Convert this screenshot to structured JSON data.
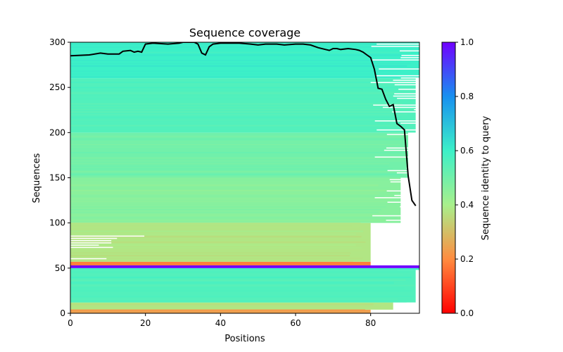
{
  "chart_data": {
    "type": "heatmap",
    "title": "Sequence coverage",
    "xlabel": "Positions",
    "ylabel": "Sequences",
    "xlim": [
      0,
      93
    ],
    "ylim": [
      0,
      300
    ],
    "xticks": [
      0,
      20,
      40,
      60,
      80
    ],
    "yticks": [
      0,
      50,
      100,
      150,
      200,
      250,
      300
    ],
    "grid": false,
    "colormap": "rainbow",
    "colorbar": {
      "label": "Sequence identity to query",
      "range": [
        0,
        1
      ],
      "ticks": [
        "0.0",
        "0.2",
        "0.4",
        "0.6",
        "0.8",
        "1.0"
      ]
    },
    "coverage_line": {
      "color": "#000000",
      "x": [
        0,
        5,
        8,
        10,
        13,
        14,
        16,
        17,
        18,
        19,
        20,
        22,
        26,
        29,
        30,
        32,
        33,
        34,
        35,
        36,
        37,
        38,
        40,
        45,
        48,
        50,
        52,
        55,
        57,
        60,
        62,
        64,
        66,
        68,
        69,
        70,
        71,
        72,
        74,
        76,
        77,
        78,
        79,
        80,
        81,
        82,
        83,
        84,
        85,
        86,
        87,
        88,
        89,
        90,
        91,
        92
      ],
      "y": [
        285,
        286,
        288,
        287,
        287,
        290,
        291,
        289,
        290,
        289,
        298,
        299,
        298,
        299,
        300,
        300,
        300,
        298,
        288,
        286,
        295,
        298,
        299,
        299,
        298,
        297,
        298,
        298,
        297,
        298,
        298,
        297,
        294,
        292,
        291,
        293,
        293,
        292,
        293,
        292,
        291,
        289,
        286,
        283,
        270,
        249,
        248,
        237,
        229,
        231,
        210,
        207,
        203,
        152,
        125,
        119
      ]
    },
    "bands": [
      {
        "ymin": 0,
        "ymax": 4,
        "identity": 0.24,
        "x_end": 80,
        "note": "bottom orange"
      },
      {
        "ymin": 4,
        "ymax": 12,
        "identity": 0.38,
        "x_end": 86
      },
      {
        "ymin": 12,
        "ymax": 48,
        "identity": 0.56,
        "x_end": 92
      },
      {
        "ymin": 48,
        "ymax": 50,
        "identity": 0.6,
        "x_end": 93
      },
      {
        "ymin": 50,
        "ymax": 53,
        "identity": 1.0,
        "x_end": 93
      },
      {
        "ymin": 53,
        "ymax": 57,
        "identity": 0.18,
        "x_end": 80
      },
      {
        "ymin": 57,
        "ymax": 100,
        "identity": 0.38,
        "x_end": 80
      },
      {
        "ymin": 100,
        "ymax": 150,
        "identity": 0.46,
        "x_end": 88
      },
      {
        "ymin": 150,
        "ymax": 200,
        "identity": 0.5,
        "x_end": 90
      },
      {
        "ymin": 200,
        "ymax": 260,
        "identity": 0.56,
        "x_end": 92
      },
      {
        "ymin": 260,
        "ymax": 300,
        "identity": 0.6,
        "x_end": 93
      }
    ]
  }
}
